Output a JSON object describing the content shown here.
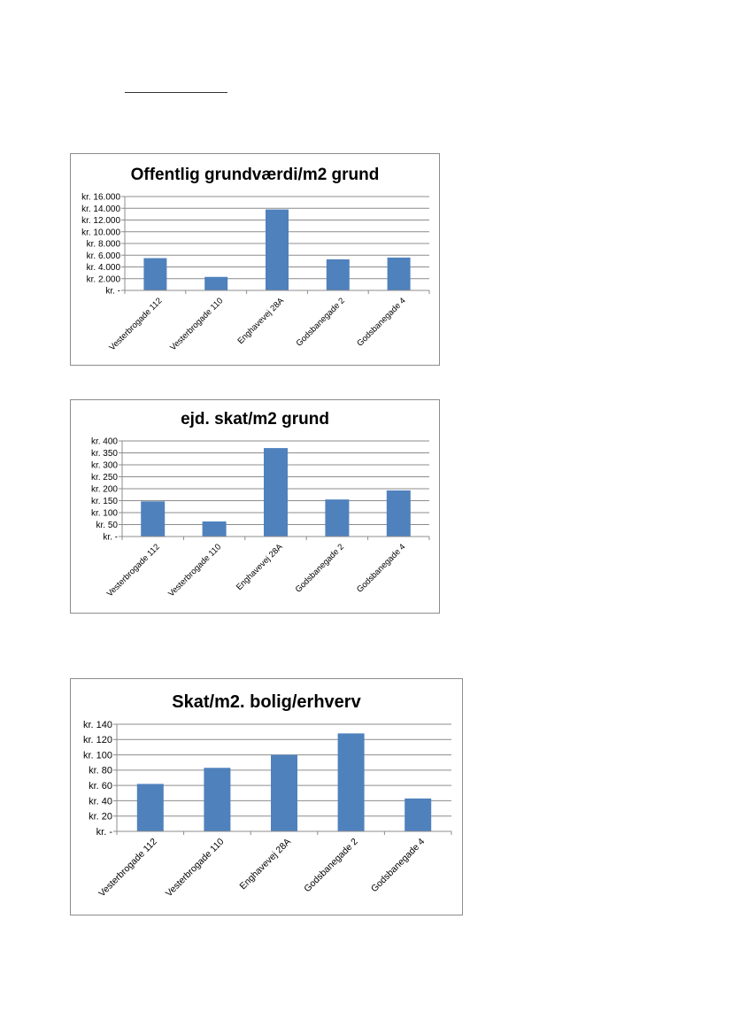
{
  "chart_data": [
    {
      "type": "bar",
      "title": "Offentlig grundværdi/m2 grund",
      "categories": [
        "Vesterbrogade 112",
        "Vesterbrogade 110",
        "Enghavevej 28A",
        "Godsbanegade 2",
        "Godsbanegade 4"
      ],
      "values": [
        5500,
        2300,
        13800,
        5300,
        5600
      ],
      "ylim": [
        0,
        16000
      ],
      "yticks": [
        0,
        2000,
        4000,
        6000,
        8000,
        10000,
        12000,
        14000,
        16000
      ],
      "ytick_labels": [
        "kr. -",
        "kr. 2.000",
        "kr. 4.000",
        "kr. 6.000",
        "kr. 8.000",
        "kr. 10.000",
        "kr. 12.000",
        "kr. 14.000",
        "kr. 16.000"
      ],
      "grid": true,
      "color": "#4f81bd"
    },
    {
      "type": "bar",
      "title": "ejd. skat/m2  grund",
      "categories": [
        "Vesterbrogade 112",
        "Vesterbrogade 110",
        "Enghavevej 28A",
        "Godsbanegade 2",
        "Godsbanegade 4"
      ],
      "values": [
        147,
        63,
        370,
        155,
        193
      ],
      "ylim": [
        0,
        400
      ],
      "yticks": [
        0,
        50,
        100,
        150,
        200,
        250,
        300,
        350,
        400
      ],
      "ytick_labels": [
        "kr. -",
        "kr. 50",
        "kr. 100",
        "kr. 150",
        "kr. 200",
        "kr. 250",
        "kr. 300",
        "kr. 350",
        "kr. 400"
      ],
      "grid": true,
      "color": "#4f81bd"
    },
    {
      "type": "bar",
      "title": "Skat/m2. bolig/erhverv",
      "categories": [
        "Vesterbrogade 112",
        "Vesterbrogade 110",
        "Enghavevej 28A",
        "Godsbanegade 2",
        "Godsbanegade 4"
      ],
      "values": [
        62,
        83,
        100,
        128,
        43
      ],
      "ylim": [
        0,
        140
      ],
      "yticks": [
        0,
        20,
        40,
        60,
        80,
        100,
        120,
        140
      ],
      "ytick_labels": [
        "kr. -",
        "kr. 20",
        "kr. 40",
        "kr. 60",
        "kr. 80",
        "kr. 100",
        "kr. 120",
        "kr. 140"
      ],
      "grid": true,
      "color": "#4f81bd"
    }
  ]
}
